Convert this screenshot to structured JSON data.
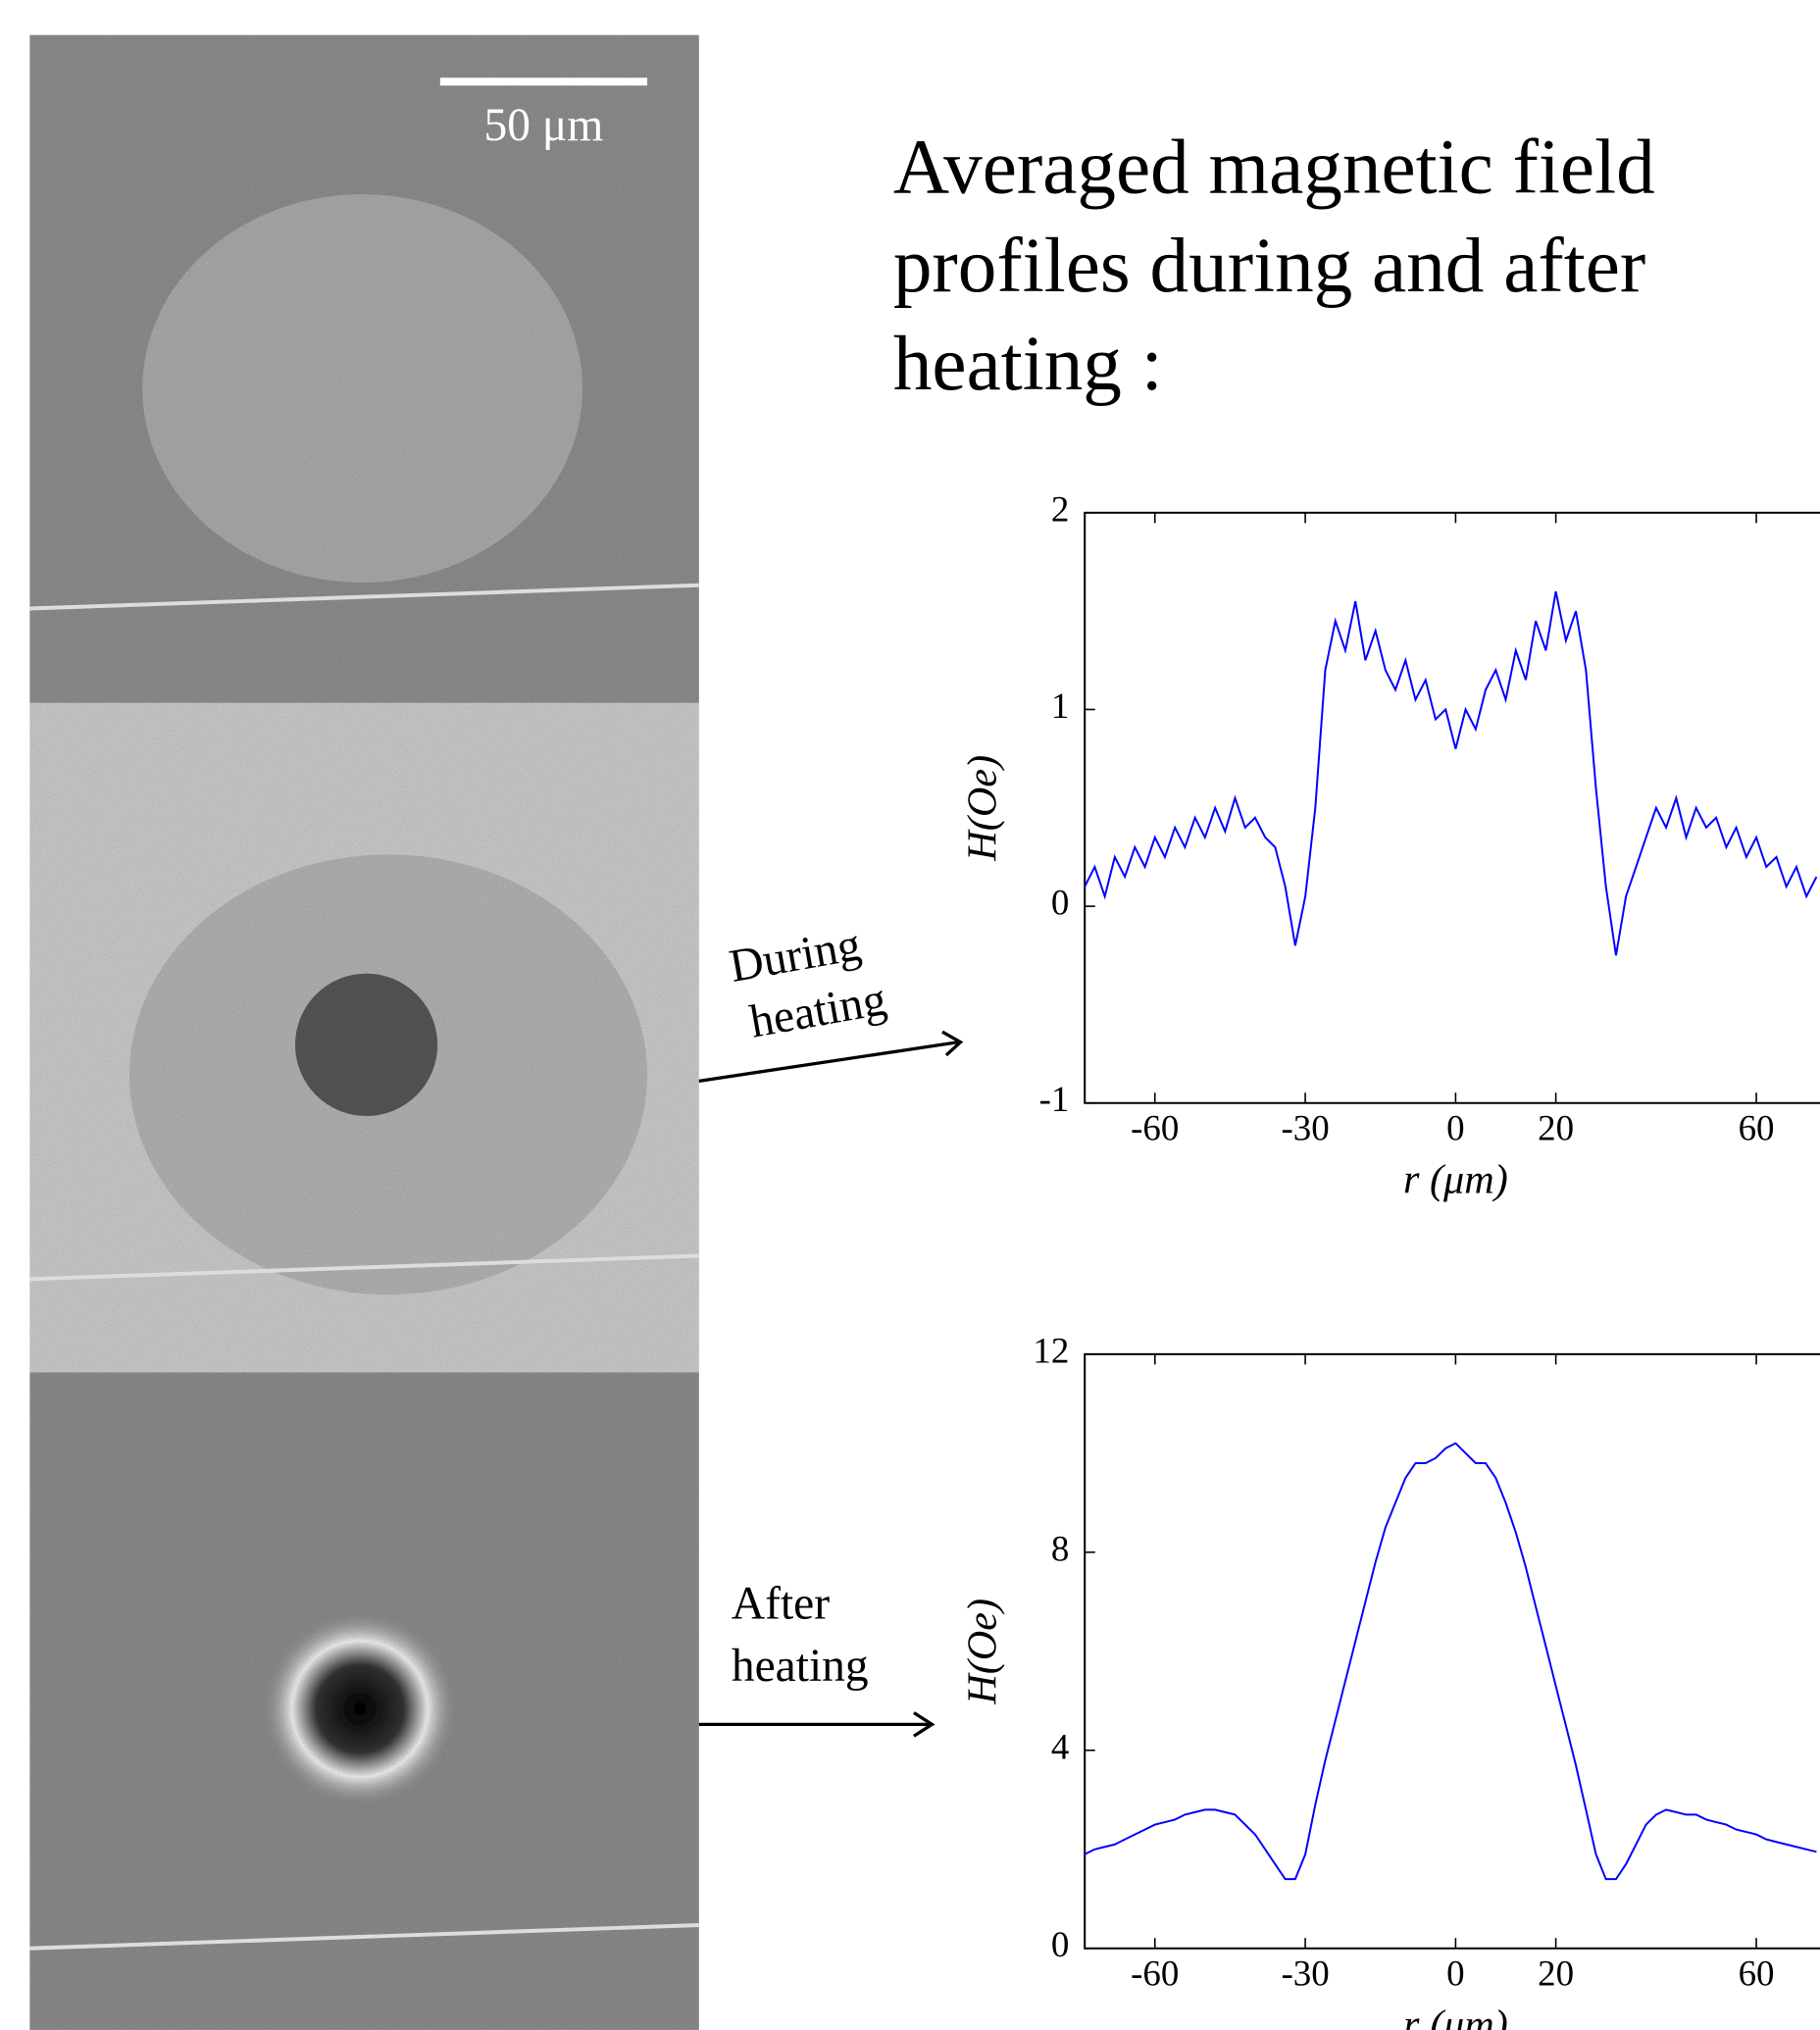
{
  "title": [
    "Averaged magnetic field",
    "profiles during and after",
    "heating :"
  ],
  "scale_bar": "50 μm",
  "annotations": [
    [
      "During",
      "heating"
    ],
    [
      "After",
      "heating"
    ]
  ],
  "chart_data": [
    {
      "type": "line",
      "xlabel": "r (μm)",
      "ylabel": "H(Oe)",
      "color": "#0000ff",
      "xlim": [
        -74,
        74
      ],
      "ylim": [
        -1,
        2
      ],
      "xticks": [
        -60,
        -30,
        0,
        20,
        60
      ],
      "yticks": [
        -1,
        0,
        1,
        2
      ],
      "grid": false,
      "x": [
        -74,
        -72,
        -70,
        -68,
        -66,
        -64,
        -62,
        -60,
        -58,
        -56,
        -54,
        -52,
        -50,
        -48,
        -46,
        -44,
        -42,
        -40,
        -38,
        -36,
        -34,
        -32,
        -30,
        -28,
        -26,
        -24,
        -22,
        -20,
        -18,
        -16,
        -14,
        -12,
        -10,
        -8,
        -6,
        -4,
        -2,
        0,
        2,
        4,
        6,
        8,
        10,
        12,
        14,
        16,
        18,
        20,
        22,
        24,
        26,
        28,
        30,
        32,
        34,
        36,
        38,
        40,
        42,
        44,
        46,
        48,
        50,
        52,
        54,
        56,
        58,
        60,
        62,
        64,
        66,
        68,
        70,
        72
      ],
      "values": [
        0.1,
        0.2,
        0.05,
        0.25,
        0.15,
        0.3,
        0.2,
        0.35,
        0.25,
        0.4,
        0.3,
        0.45,
        0.35,
        0.5,
        0.38,
        0.55,
        0.4,
        0.45,
        0.35,
        0.3,
        0.1,
        -0.2,
        0.05,
        0.5,
        1.2,
        1.45,
        1.3,
        1.55,
        1.25,
        1.4,
        1.2,
        1.1,
        1.25,
        1.05,
        1.15,
        0.95,
        1.0,
        0.8,
        1.0,
        0.9,
        1.1,
        1.2,
        1.05,
        1.3,
        1.15,
        1.45,
        1.3,
        1.6,
        1.35,
        1.5,
        1.2,
        0.6,
        0.1,
        -0.25,
        0.05,
        0.2,
        0.35,
        0.5,
        0.4,
        0.55,
        0.35,
        0.5,
        0.4,
        0.45,
        0.3,
        0.4,
        0.25,
        0.35,
        0.2,
        0.25,
        0.1,
        0.2,
        0.05,
        0.15
      ]
    },
    {
      "type": "line",
      "xlabel": "r (μm)",
      "ylabel": "H(Oe)",
      "color": "#0000ff",
      "xlim": [
        -74,
        74
      ],
      "ylim": [
        0,
        12
      ],
      "xticks": [
        -60,
        -30,
        0,
        20,
        60
      ],
      "yticks": [
        0,
        4,
        8,
        12
      ],
      "grid": false,
      "x": [
        -74,
        -72,
        -70,
        -68,
        -66,
        -64,
        -62,
        -60,
        -58,
        -56,
        -54,
        -52,
        -50,
        -48,
        -46,
        -44,
        -42,
        -40,
        -38,
        -36,
        -34,
        -32,
        -30,
        -28,
        -26,
        -24,
        -22,
        -20,
        -18,
        -16,
        -14,
        -12,
        -10,
        -8,
        -6,
        -4,
        -2,
        0,
        2,
        4,
        6,
        8,
        10,
        12,
        14,
        16,
        18,
        20,
        22,
        24,
        26,
        28,
        30,
        32,
        34,
        36,
        38,
        40,
        42,
        44,
        46,
        48,
        50,
        52,
        54,
        56,
        58,
        60,
        62,
        64,
        66,
        68,
        70,
        72
      ],
      "values": [
        1.9,
        2.0,
        2.05,
        2.1,
        2.2,
        2.3,
        2.4,
        2.5,
        2.55,
        2.6,
        2.7,
        2.75,
        2.8,
        2.8,
        2.75,
        2.7,
        2.5,
        2.3,
        2.0,
        1.7,
        1.4,
        1.4,
        1.9,
        2.9,
        3.8,
        4.6,
        5.4,
        6.2,
        7.0,
        7.8,
        8.5,
        9.0,
        9.5,
        9.8,
        9.8,
        9.9,
        10.1,
        10.2,
        10.0,
        9.8,
        9.8,
        9.5,
        9.0,
        8.4,
        7.7,
        6.9,
        6.1,
        5.3,
        4.5,
        3.7,
        2.8,
        1.9,
        1.4,
        1.4,
        1.7,
        2.1,
        2.5,
        2.7,
        2.8,
        2.75,
        2.7,
        2.7,
        2.6,
        2.55,
        2.5,
        2.4,
        2.35,
        2.3,
        2.2,
        2.15,
        2.1,
        2.05,
        2.0,
        1.95
      ]
    }
  ]
}
